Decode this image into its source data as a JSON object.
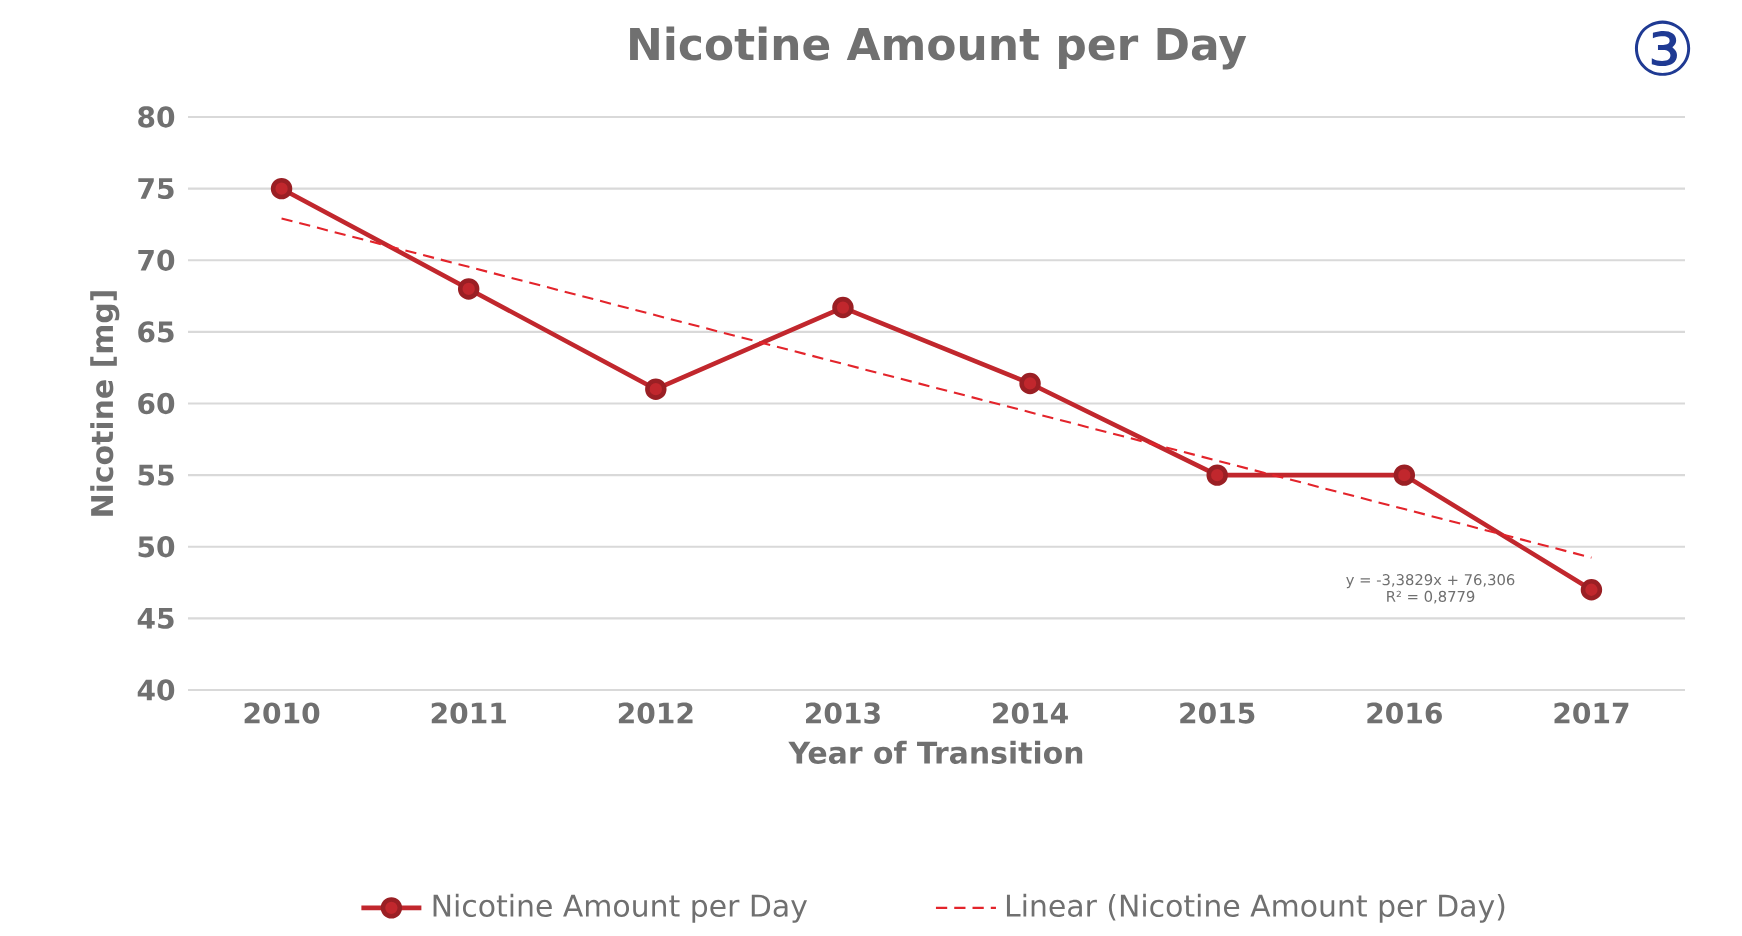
{
  "chart_data": {
    "type": "line",
    "title": "Nicotine Amount per Day",
    "xlabel": "Year of Transition",
    "ylabel": "Nicotine [mg]",
    "categories": [
      "2010",
      "2011",
      "2012",
      "2013",
      "2014",
      "2015",
      "2016",
      "2017"
    ],
    "ylim": [
      40,
      80
    ],
    "yticks": [
      40,
      45,
      50,
      55,
      60,
      65,
      70,
      75,
      80
    ],
    "grid": "y",
    "legend": "bottom",
    "series": [
      {
        "name": "Nicotine Amount per Day",
        "color": "#c1272d",
        "marker": "circle",
        "line_style": "solid",
        "values": [
          75,
          68,
          61,
          66.7,
          61.4,
          55,
          55,
          47
        ]
      },
      {
        "name": "Linear (Nicotine Amount per Day)",
        "color": "#e3242b",
        "marker": "none",
        "line_style": "dashed",
        "values": [
          72.92,
          69.54,
          66.16,
          62.77,
          59.39,
          56.01,
          52.63,
          49.24
        ]
      }
    ],
    "annotations": [
      "y = -3,3829x + 76,306",
      "R² = 0,8779",
      "③"
    ]
  }
}
